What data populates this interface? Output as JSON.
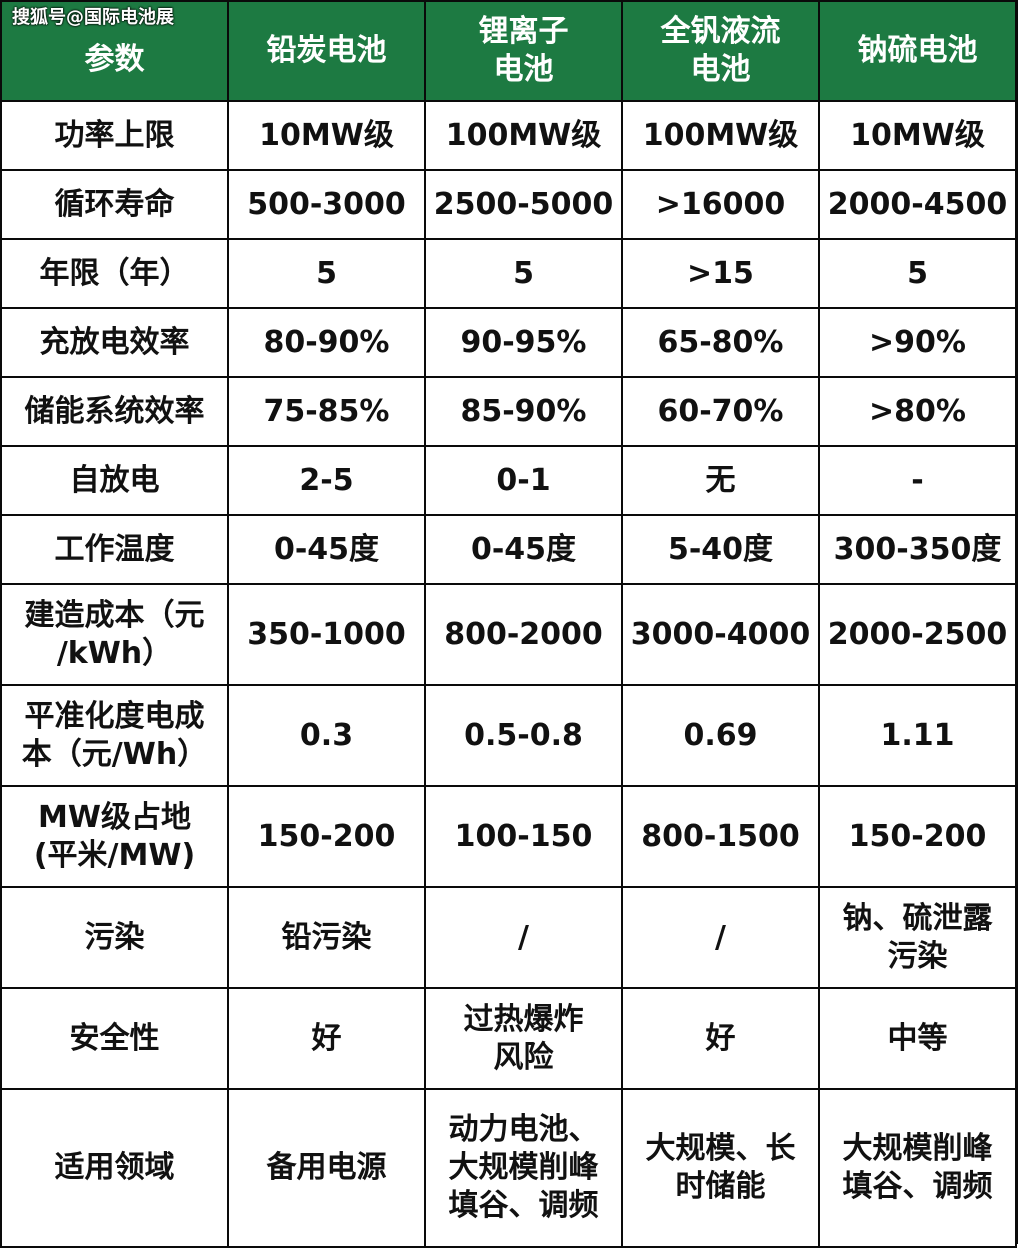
{
  "watermark": "搜狐号@国际电池展",
  "table": {
    "header": {
      "param": "参数",
      "cols": [
        [
          "铅炭电池"
        ],
        [
          "锂离子",
          "电池"
        ],
        [
          "全钒液流",
          "电池"
        ],
        [
          "钠硫电池"
        ]
      ]
    },
    "rows": [
      {
        "label": [
          "功率上限"
        ],
        "cells": [
          [
            "10MW级"
          ],
          [
            "100MW级"
          ],
          [
            "100MW级"
          ],
          [
            "10MW级"
          ]
        ]
      },
      {
        "label": [
          "循环寿命"
        ],
        "cells": [
          [
            "500-3000"
          ],
          [
            "2500-5000"
          ],
          [
            ">16000"
          ],
          [
            "2000-4500"
          ]
        ]
      },
      {
        "label": [
          "年限（年）"
        ],
        "cells": [
          [
            "5"
          ],
          [
            "5"
          ],
          [
            ">15"
          ],
          [
            "5"
          ]
        ]
      },
      {
        "label": [
          "充放电效率"
        ],
        "cells": [
          [
            "80-90%"
          ],
          [
            "90-95%"
          ],
          [
            "65-80%"
          ],
          [
            ">90%"
          ]
        ]
      },
      {
        "label": [
          "储能系统效率"
        ],
        "cells": [
          [
            "75-85%"
          ],
          [
            "85-90%"
          ],
          [
            "60-70%"
          ],
          [
            ">80%"
          ]
        ]
      },
      {
        "label": [
          "自放电"
        ],
        "cells": [
          [
            "2-5"
          ],
          [
            "0-1"
          ],
          [
            "无"
          ],
          [
            "-"
          ]
        ]
      },
      {
        "label": [
          "工作温度"
        ],
        "cells": [
          [
            "0-45度"
          ],
          [
            "0-45度"
          ],
          [
            "5-40度"
          ],
          [
            "300-350度"
          ]
        ]
      },
      {
        "label": [
          "建造成本（元",
          "/kWh）"
        ],
        "cells": [
          [
            "350-1000"
          ],
          [
            "800-2000"
          ],
          [
            "3000-4000"
          ],
          [
            "2000-2500"
          ]
        ]
      },
      {
        "label": [
          "平准化度电成",
          "本（元/Wh）"
        ],
        "cells": [
          [
            "0.3"
          ],
          [
            "0.5-0.8"
          ],
          [
            "0.69"
          ],
          [
            "1.11"
          ]
        ]
      },
      {
        "label": [
          "MW级占地",
          "(平米/MW)"
        ],
        "cells": [
          [
            "150-200"
          ],
          [
            "100-150"
          ],
          [
            "800-1500"
          ],
          [
            "150-200"
          ]
        ]
      },
      {
        "label": [
          "污染"
        ],
        "cells": [
          [
            "铅污染"
          ],
          [
            "/"
          ],
          [
            "/"
          ],
          [
            "钠、硫泄露",
            "污染"
          ]
        ]
      },
      {
        "label": [
          "安全性"
        ],
        "cells": [
          [
            "好"
          ],
          [
            "过热爆炸",
            "风险"
          ],
          [
            "好"
          ],
          [
            "中等"
          ]
        ]
      },
      {
        "label": [
          "适用领域"
        ],
        "cells": [
          [
            "备用电源"
          ],
          [
            "动力电池、",
            "大规模削峰",
            "填谷、调频"
          ],
          [
            "大规模、长",
            "时储能"
          ],
          [
            "大规模削峰",
            "填谷、调频"
          ]
        ]
      }
    ]
  },
  "colors": {
    "header_bg": "#1d7a42",
    "header_text": "#ffffff",
    "border": "#0a0a0a",
    "body_text": "#111111"
  }
}
